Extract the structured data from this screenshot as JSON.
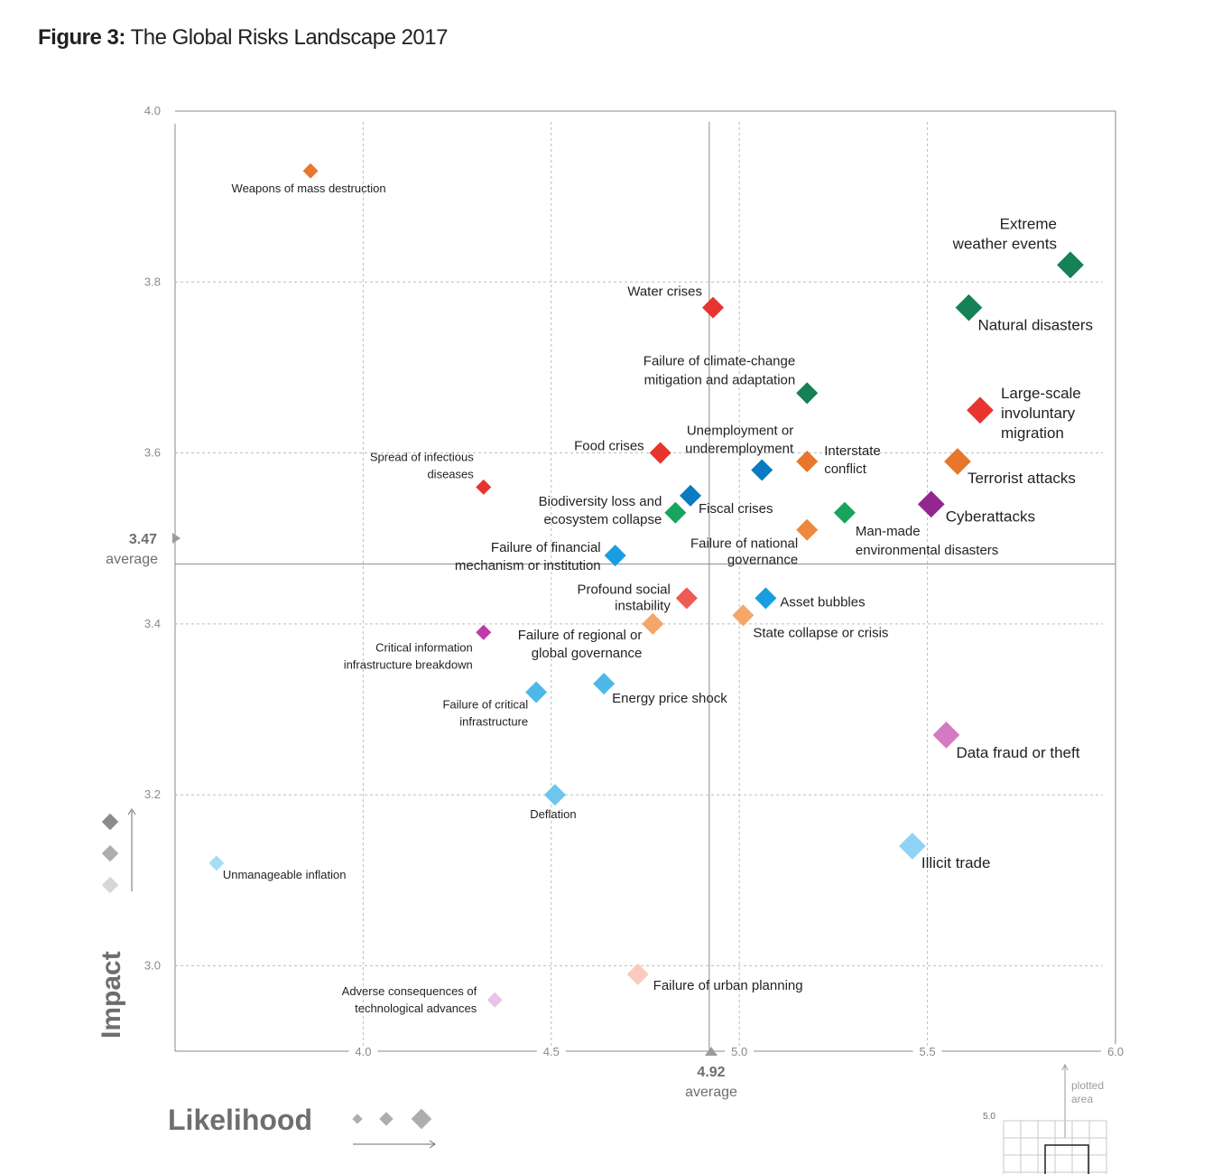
{
  "figure": {
    "label": "Figure 3:",
    "title": "The Global Risks Landscape 2017"
  },
  "chart_data": {
    "type": "scatter",
    "xlabel": "Likelihood",
    "ylabel": "Impact",
    "xlim": [
      3.5,
      6.0
    ],
    "ylim": [
      2.9,
      4.0
    ],
    "x_ticks": [
      "4.0",
      "4.5",
      "5.0",
      "5.5",
      "6.0"
    ],
    "y_ticks": [
      "3.0",
      "3.2",
      "3.4",
      "3.6",
      "3.8",
      "4.0"
    ],
    "grid": true,
    "x_average": {
      "value": "4.92",
      "label": "average"
    },
    "y_average": {
      "value": "3.47",
      "label": "average"
    },
    "points": [
      {
        "name": "Weapons of mass destruction",
        "x": 3.86,
        "y": 3.93,
        "color": "#e8762c",
        "size": "small"
      },
      {
        "name": "Extreme weather events",
        "x": 5.88,
        "y": 3.82,
        "color": "#158155",
        "size": "large"
      },
      {
        "name": "Natural disasters",
        "x": 5.61,
        "y": 3.77,
        "color": "#158155",
        "size": "large"
      },
      {
        "name": "Water crises",
        "x": 4.93,
        "y": 3.77,
        "color": "#e8342f",
        "size": "medium"
      },
      {
        "name": "Failure of climate-change mitigation and adaptation",
        "x": 5.18,
        "y": 3.67,
        "color": "#158155",
        "size": "medium"
      },
      {
        "name": "Large-scale involuntary migration",
        "x": 5.64,
        "y": 3.65,
        "color": "#e8342f",
        "size": "large"
      },
      {
        "name": "Food crises",
        "x": 4.79,
        "y": 3.6,
        "color": "#e8342f",
        "size": "medium"
      },
      {
        "name": "Unemployment or underemployment",
        "x": 5.06,
        "y": 3.58,
        "color": "#0a7bc0",
        "size": "medium"
      },
      {
        "name": "Interstate conflict",
        "x": 5.18,
        "y": 3.59,
        "color": "#e8762c",
        "size": "medium"
      },
      {
        "name": "Terrorist attacks",
        "x": 5.58,
        "y": 3.59,
        "color": "#e8762c",
        "size": "large"
      },
      {
        "name": "Spread of infectious diseases",
        "x": 4.32,
        "y": 3.56,
        "color": "#e8342f",
        "size": "small"
      },
      {
        "name": "Fiscal crises",
        "x": 4.87,
        "y": 3.55,
        "color": "#0a7bc0",
        "size": "medium"
      },
      {
        "name": "Biodiversity loss and ecosystem collapse",
        "x": 4.83,
        "y": 3.53,
        "color": "#17a45d",
        "size": "medium"
      },
      {
        "name": "Cyberattacks",
        "x": 5.51,
        "y": 3.54,
        "color": "#93278f",
        "size": "large"
      },
      {
        "name": "Man-made environmental disasters",
        "x": 5.28,
        "y": 3.53,
        "color": "#17a45d",
        "size": "medium"
      },
      {
        "name": "Failure of national governance",
        "x": 5.18,
        "y": 3.51,
        "color": "#f0873e",
        "size": "medium"
      },
      {
        "name": "Failure of financial mechanism or institution",
        "x": 4.67,
        "y": 3.48,
        "color": "#189ee0",
        "size": "medium"
      },
      {
        "name": "Profound social instability",
        "x": 4.86,
        "y": 3.43,
        "color": "#ee5a54",
        "size": "medium"
      },
      {
        "name": "Asset bubbles",
        "x": 5.07,
        "y": 3.43,
        "color": "#189ee0",
        "size": "medium"
      },
      {
        "name": "State collapse or crisis",
        "x": 5.01,
        "y": 3.41,
        "color": "#f5a66b",
        "size": "medium"
      },
      {
        "name": "Failure of regional or global governance",
        "x": 4.77,
        "y": 3.4,
        "color": "#f5a66b",
        "size": "medium"
      },
      {
        "name": "Critical information infrastructure breakdown",
        "x": 4.32,
        "y": 3.39,
        "color": "#be3aa8",
        "size": "small"
      },
      {
        "name": "Energy price shock",
        "x": 4.64,
        "y": 3.33,
        "color": "#4fb8ea",
        "size": "medium"
      },
      {
        "name": "Failure of critical infrastructure",
        "x": 4.46,
        "y": 3.32,
        "color": "#4fb8ea",
        "size": "medium"
      },
      {
        "name": "Data fraud or theft",
        "x": 5.55,
        "y": 3.27,
        "color": "#d37ac2",
        "size": "large"
      },
      {
        "name": "Deflation",
        "x": 4.51,
        "y": 3.2,
        "color": "#6ec6ef",
        "size": "medium"
      },
      {
        "name": "Illicit trade",
        "x": 5.46,
        "y": 3.14,
        "color": "#8fd2f3",
        "size": "large"
      },
      {
        "name": "Unmanageable inflation",
        "x": 3.61,
        "y": 3.12,
        "color": "#a7dcf5",
        "size": "small"
      },
      {
        "name": "Failure of urban planning",
        "x": 4.73,
        "y": 2.99,
        "color": "#f8cbbd",
        "size": "medium"
      },
      {
        "name": "Adverse consequences of technological advances",
        "x": 4.35,
        "y": 2.96,
        "color": "#e8c4e6",
        "size": "small"
      }
    ]
  },
  "inset": {
    "tick": "5.0",
    "caption": "plotted area"
  }
}
